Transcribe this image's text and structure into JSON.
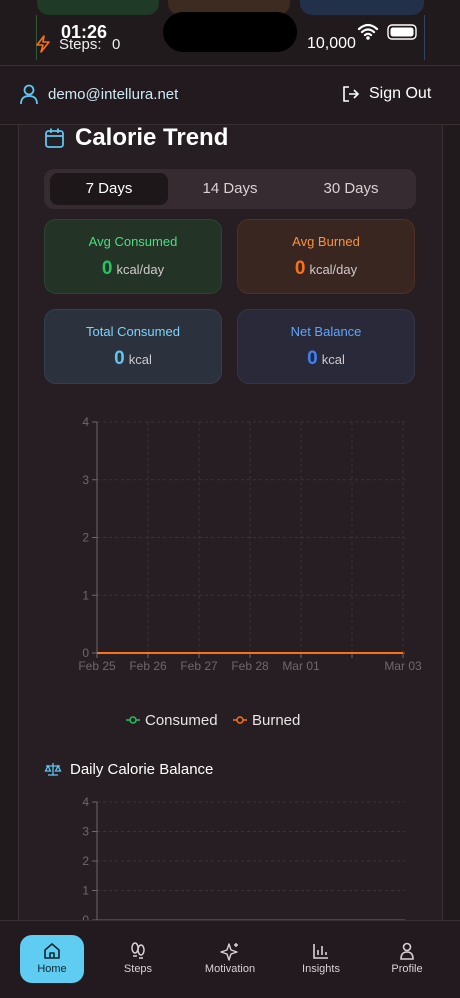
{
  "status_bar": {
    "time": "01:26"
  },
  "top_strip": {
    "steps_label": "Steps:",
    "steps_value": "0",
    "goal_value": "10,000"
  },
  "header": {
    "email": "demo@intellura.net",
    "sign_out": "Sign Out"
  },
  "calorie_trend": {
    "title": "Calorie Trend",
    "tabs": [
      "7 Days",
      "14 Days",
      "30 Days"
    ],
    "selected_tab": 0,
    "stats": [
      {
        "label": "Avg Consumed",
        "value": 0,
        "unit": "kcal/day"
      },
      {
        "label": "Avg Burned",
        "value": 0,
        "unit": "kcal/day"
      },
      {
        "label": "Total Consumed",
        "value": 0,
        "unit": "kcal"
      },
      {
        "label": "Net Balance",
        "value": 0,
        "unit": "kcal"
      }
    ]
  },
  "chart_data": [
    {
      "type": "line",
      "categories": [
        "Feb 25",
        "Feb 26",
        "Feb 27",
        "Feb 28",
        "Mar 01",
        null,
        "Mar 03"
      ],
      "series": [
        {
          "name": "Consumed",
          "color": "#22c55e",
          "values": [
            0,
            0,
            0,
            0,
            0,
            0,
            0
          ]
        },
        {
          "name": "Burned",
          "color": "#f97316",
          "values": [
            0,
            0,
            0,
            0,
            0,
            0,
            0
          ]
        }
      ],
      "ylim": [
        0,
        4
      ],
      "yticks": [
        0,
        1,
        2,
        3,
        4
      ],
      "grid": true
    },
    {
      "type": "bar",
      "title": "Daily Calorie Balance",
      "ylim": [
        0,
        4
      ],
      "yticks": [
        0,
        1,
        2,
        3,
        4
      ],
      "grid": true
    }
  ],
  "nav": {
    "items": [
      "Home",
      "Steps",
      "Motivation",
      "Insights",
      "Profile"
    ],
    "active": 0
  }
}
